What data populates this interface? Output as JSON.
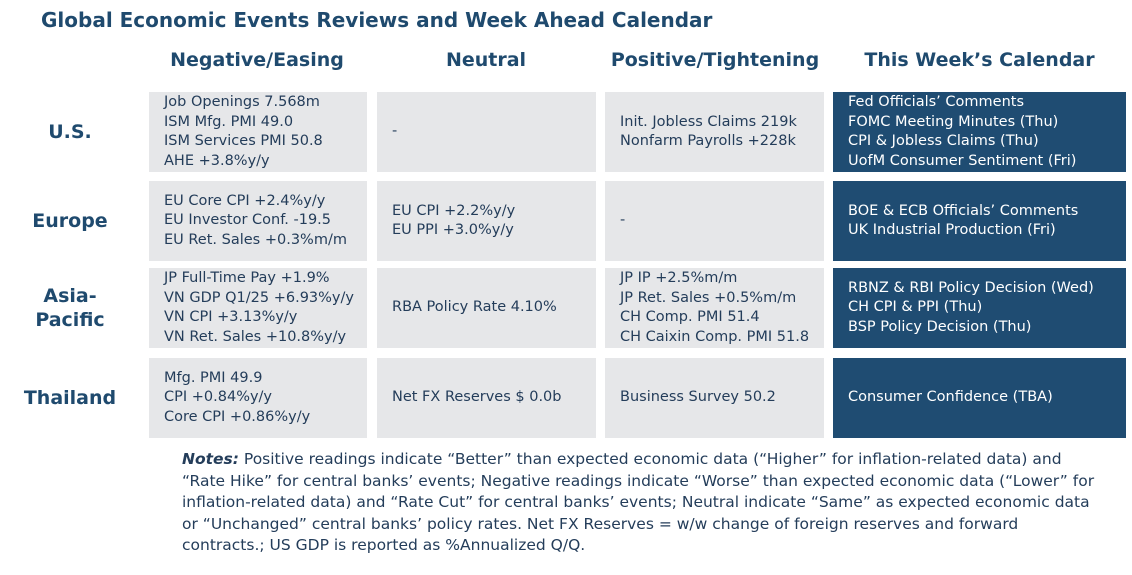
{
  "title": "Global Economic Events Reviews and Week Ahead Calendar",
  "columns": [
    "Negative/Easing",
    "Neutral",
    "Positive/Tightening",
    "This Week’s Calendar"
  ],
  "rows": [
    {
      "label": "U.S.",
      "negative": [
        "Job Openings 7.568m",
        "ISM Mfg. PMI 49.0",
        "ISM Services PMI 50.8",
        "AHE +3.8%y/y"
      ],
      "neutral": [
        "-"
      ],
      "positive": [
        "Init. Jobless Claims 219k",
        "Nonfarm Payrolls +228k"
      ],
      "calendar": [
        "Fed Officials’ Comments",
        "FOMC Meeting Minutes (Thu)",
        "CPI & Jobless Claims (Thu)",
        "UofM Consumer Sentiment (Fri)"
      ]
    },
    {
      "label": "Europe",
      "negative": [
        "EU Core CPI +2.4%y/y",
        "EU Investor Conf. -19.5",
        "EU Ret. Sales +0.3%m/m"
      ],
      "neutral": [
        "EU CPI +2.2%y/y",
        "EU PPI +3.0%y/y"
      ],
      "positive": [
        "-"
      ],
      "calendar": [
        "BOE & ECB Officials’ Comments",
        "UK Industrial Production (Fri)"
      ]
    },
    {
      "label": "Asia-Pacific",
      "label_lines": [
        "Asia-",
        "Pacific"
      ],
      "negative": [
        "JP Full-Time Pay +1.9%",
        "VN GDP Q1/25 +6.93%y/y",
        "VN CPI +3.13%y/y",
        "VN Ret. Sales +10.8%y/y"
      ],
      "neutral": [
        "RBA Policy Rate 4.10%"
      ],
      "positive": [
        "JP IP +2.5%m/m",
        "JP Ret. Sales +0.5%m/m",
        "CH Comp. PMI 51.4",
        "CH Caixin Comp. PMI 51.8"
      ],
      "calendar": [
        "RBNZ & RBI Policy Decision (Wed)",
        "CH CPI & PPI (Thu)",
        "BSP Policy Decision (Thu)"
      ]
    },
    {
      "label": "Thailand",
      "negative": [
        "Mfg. PMI 49.9",
        "CPI +0.84%y/y",
        "Core CPI +0.86%y/y"
      ],
      "neutral": [
        "Net FX Reserves $ 0.0b"
      ],
      "positive": [
        "Business Survey 50.2"
      ],
      "calendar": [
        "Consumer Confidence (TBA)"
      ]
    }
  ],
  "notes": {
    "label": "Notes:",
    "text": " Positive readings indicate “Better” than expected economic data (“Higher” for inflation-related data) and “Rate Hike” for central banks’ events; Negative readings indicate “Worse” than expected economic data (“Lower” for inflation-related data) and “Rate Cut” for central banks’ events; Neutral indicate “Same” as expected economic data or “Unchanged” central banks’ policy rates. Net FX Reserves = w/w change of foreign reserves and forward contracts.; US GDP is reported as %Annualized Q/Q."
  },
  "colors": {
    "title": "#1f4a6e",
    "cell_bg": "#e6e7e9",
    "calendar_bg": "#1f4c72",
    "calendar_text": "#ffffff"
  }
}
